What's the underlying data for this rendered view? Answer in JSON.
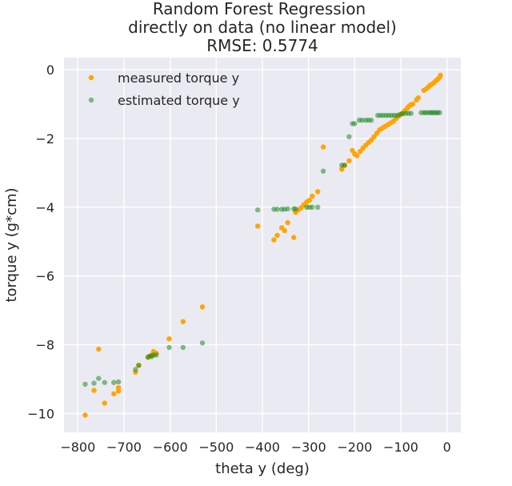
{
  "chart_data": {
    "type": "scatter",
    "title_lines": [
      "Random Forest Regression",
      "directly on data (no linear model)",
      "RMSE: 0.5774"
    ],
    "xlabel": "theta y (deg)",
    "ylabel": "torque y (g*cm)",
    "xlim": [
      -830,
      30
    ],
    "ylim": [
      -10.55,
      0.35
    ],
    "xticks": [
      -800,
      -700,
      -600,
      -500,
      -400,
      -300,
      -200,
      -100,
      0
    ],
    "xtick_labels": [
      "−800",
      "−700",
      "−600",
      "−500",
      "−400",
      "−300",
      "−200",
      "−100",
      "0"
    ],
    "yticks": [
      0,
      -2,
      -4,
      -6,
      -8,
      -10
    ],
    "ytick_labels": [
      "0",
      "−2",
      "−4",
      "−6",
      "−8",
      "−10"
    ],
    "grid": true,
    "legend_position": "top-left",
    "background_color": "#eaeaf2",
    "series": [
      {
        "name": "measured torque y",
        "color": "#ffa500",
        "points": [
          [
            -784,
            -10.05
          ],
          [
            -765,
            -9.33
          ],
          [
            -755,
            -8.13
          ],
          [
            -742,
            -9.7
          ],
          [
            -722,
            -9.43
          ],
          [
            -712,
            -9.35
          ],
          [
            -712,
            -9.25
          ],
          [
            -675,
            -8.8
          ],
          [
            -668,
            -8.6
          ],
          [
            -648,
            -8.37
          ],
          [
            -640,
            -8.3
          ],
          [
            -636,
            -8.2
          ],
          [
            -630,
            -8.25
          ],
          [
            -602,
            -7.83
          ],
          [
            -572,
            -7.33
          ],
          [
            -530,
            -6.9
          ],
          [
            -410,
            -4.55
          ],
          [
            -375,
            -4.95
          ],
          [
            -368,
            -4.82
          ],
          [
            -358,
            -4.6
          ],
          [
            -352,
            -4.68
          ],
          [
            -345,
            -4.45
          ],
          [
            -332,
            -4.88
          ],
          [
            -328,
            -4.15
          ],
          [
            -322,
            -4.08
          ],
          [
            -316,
            -4.02
          ],
          [
            -310,
            -3.93
          ],
          [
            -304,
            -3.85
          ],
          [
            -298,
            -3.8
          ],
          [
            -292,
            -3.68
          ],
          [
            -280,
            -3.55
          ],
          [
            -268,
            -2.25
          ],
          [
            -228,
            -2.9
          ],
          [
            -222,
            -2.78
          ],
          [
            -212,
            -2.65
          ],
          [
            -205,
            -2.35
          ],
          [
            -200,
            -2.45
          ],
          [
            -195,
            -2.5
          ],
          [
            -188,
            -2.38
          ],
          [
            -182,
            -2.28
          ],
          [
            -176,
            -2.2
          ],
          [
            -170,
            -2.12
          ],
          [
            -164,
            -2.05
          ],
          [
            -158,
            -1.95
          ],
          [
            -152,
            -1.85
          ],
          [
            -146,
            -1.75
          ],
          [
            -140,
            -1.7
          ],
          [
            -134,
            -1.65
          ],
          [
            -128,
            -1.6
          ],
          [
            -122,
            -1.55
          ],
          [
            -116,
            -1.5
          ],
          [
            -110,
            -1.42
          ],
          [
            -104,
            -1.35
          ],
          [
            -98,
            -1.28
          ],
          [
            -92,
            -1.2
          ],
          [
            -86,
            -1.12
          ],
          [
            -82,
            -1.06
          ],
          [
            -78,
            -1.02
          ],
          [
            -74,
            -1.0
          ],
          [
            -66,
            -0.88
          ],
          [
            -62,
            -0.82
          ],
          [
            -50,
            -0.6
          ],
          [
            -44,
            -0.55
          ],
          [
            -40,
            -0.5
          ],
          [
            -36,
            -0.45
          ],
          [
            -32,
            -0.42
          ],
          [
            -28,
            -0.38
          ],
          [
            -24,
            -0.32
          ],
          [
            -20,
            -0.28
          ],
          [
            -16,
            -0.22
          ],
          [
            -14,
            -0.16
          ]
        ]
      },
      {
        "name": "estimated torque y",
        "color": "#228b22",
        "points": [
          [
            -784,
            -9.15
          ],
          [
            -765,
            -9.12
          ],
          [
            -755,
            -8.98
          ],
          [
            -742,
            -9.1
          ],
          [
            -722,
            -9.1
          ],
          [
            -712,
            -9.08
          ],
          [
            -675,
            -8.72
          ],
          [
            -668,
            -8.6
          ],
          [
            -648,
            -8.36
          ],
          [
            -644,
            -8.33
          ],
          [
            -640,
            -8.35
          ],
          [
            -636,
            -8.3
          ],
          [
            -630,
            -8.3
          ],
          [
            -602,
            -8.08
          ],
          [
            -572,
            -8.08
          ],
          [
            -530,
            -7.95
          ],
          [
            -410,
            -4.08
          ],
          [
            -375,
            -4.06
          ],
          [
            -368,
            -4.06
          ],
          [
            -358,
            -4.06
          ],
          [
            -352,
            -4.06
          ],
          [
            -345,
            -4.05
          ],
          [
            -332,
            -4.05
          ],
          [
            -328,
            -4.05
          ],
          [
            -304,
            -4.0
          ],
          [
            -298,
            -4.0
          ],
          [
            -292,
            -4.0
          ],
          [
            -280,
            -4.0
          ],
          [
            -268,
            -2.95
          ],
          [
            -228,
            -2.78
          ],
          [
            -222,
            -2.78
          ],
          [
            -212,
            -1.95
          ],
          [
            -205,
            -1.57
          ],
          [
            -200,
            -1.57
          ],
          [
            -190,
            -1.47
          ],
          [
            -184,
            -1.47
          ],
          [
            -176,
            -1.47
          ],
          [
            -170,
            -1.47
          ],
          [
            -164,
            -1.47
          ],
          [
            -150,
            -1.33
          ],
          [
            -144,
            -1.33
          ],
          [
            -138,
            -1.33
          ],
          [
            -132,
            -1.33
          ],
          [
            -126,
            -1.33
          ],
          [
            -120,
            -1.33
          ],
          [
            -114,
            -1.33
          ],
          [
            -108,
            -1.33
          ],
          [
            -102,
            -1.3
          ],
          [
            -96,
            -1.28
          ],
          [
            -90,
            -1.27
          ],
          [
            -84,
            -1.27
          ],
          [
            -78,
            -1.27
          ],
          [
            -56,
            -1.25
          ],
          [
            -50,
            -1.25
          ],
          [
            -46,
            -1.25
          ],
          [
            -40,
            -1.25
          ],
          [
            -36,
            -1.25
          ],
          [
            -32,
            -1.25
          ],
          [
            -28,
            -1.25
          ],
          [
            -24,
            -1.25
          ],
          [
            -20,
            -1.25
          ],
          [
            -16,
            -1.25
          ]
        ]
      }
    ]
  }
}
